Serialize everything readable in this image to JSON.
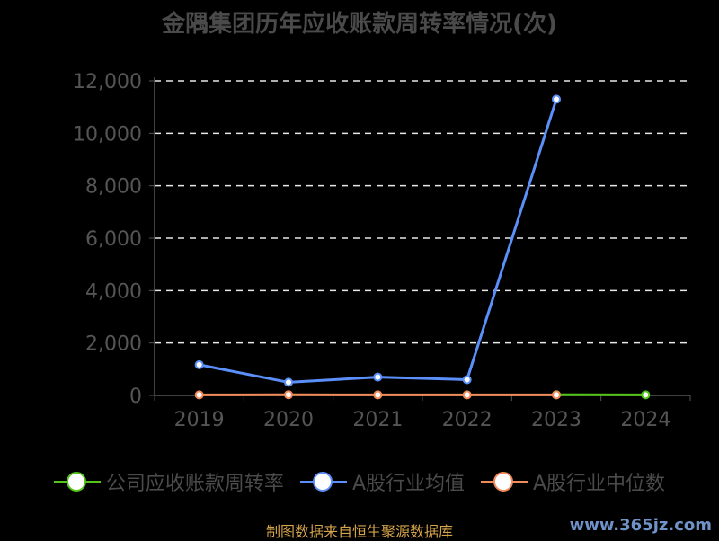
{
  "title": "金隅集团历年应收账款周转率情况(次)",
  "source": "制图数据来自恒生聚源数据库",
  "watermark": "www.365jz.com",
  "chart_data": {
    "type": "line",
    "categories": [
      "2019",
      "2020",
      "2021",
      "2022",
      "2023",
      "2024"
    ],
    "ylim": [
      0,
      12000
    ],
    "yticks": [
      0,
      2000,
      4000,
      6000,
      8000,
      10000,
      12000
    ],
    "ytick_labels": [
      "0",
      "2,000",
      "4,000",
      "6,000",
      "8,000",
      "10,000",
      "12,000"
    ],
    "grid": true,
    "legend_position": "bottom",
    "series": [
      {
        "name": "公司应收账款周转率",
        "color": "#52c41a",
        "values": [
          null,
          null,
          null,
          null,
          25,
          23
        ]
      },
      {
        "name": "A股行业均值",
        "color": "#5b8ff9",
        "values": [
          1170,
          500,
          700,
          600,
          11300,
          null
        ]
      },
      {
        "name": "A股行业中位数",
        "color": "#f08c5a",
        "values": [
          22,
          25,
          20,
          20,
          22,
          null
        ]
      }
    ]
  }
}
